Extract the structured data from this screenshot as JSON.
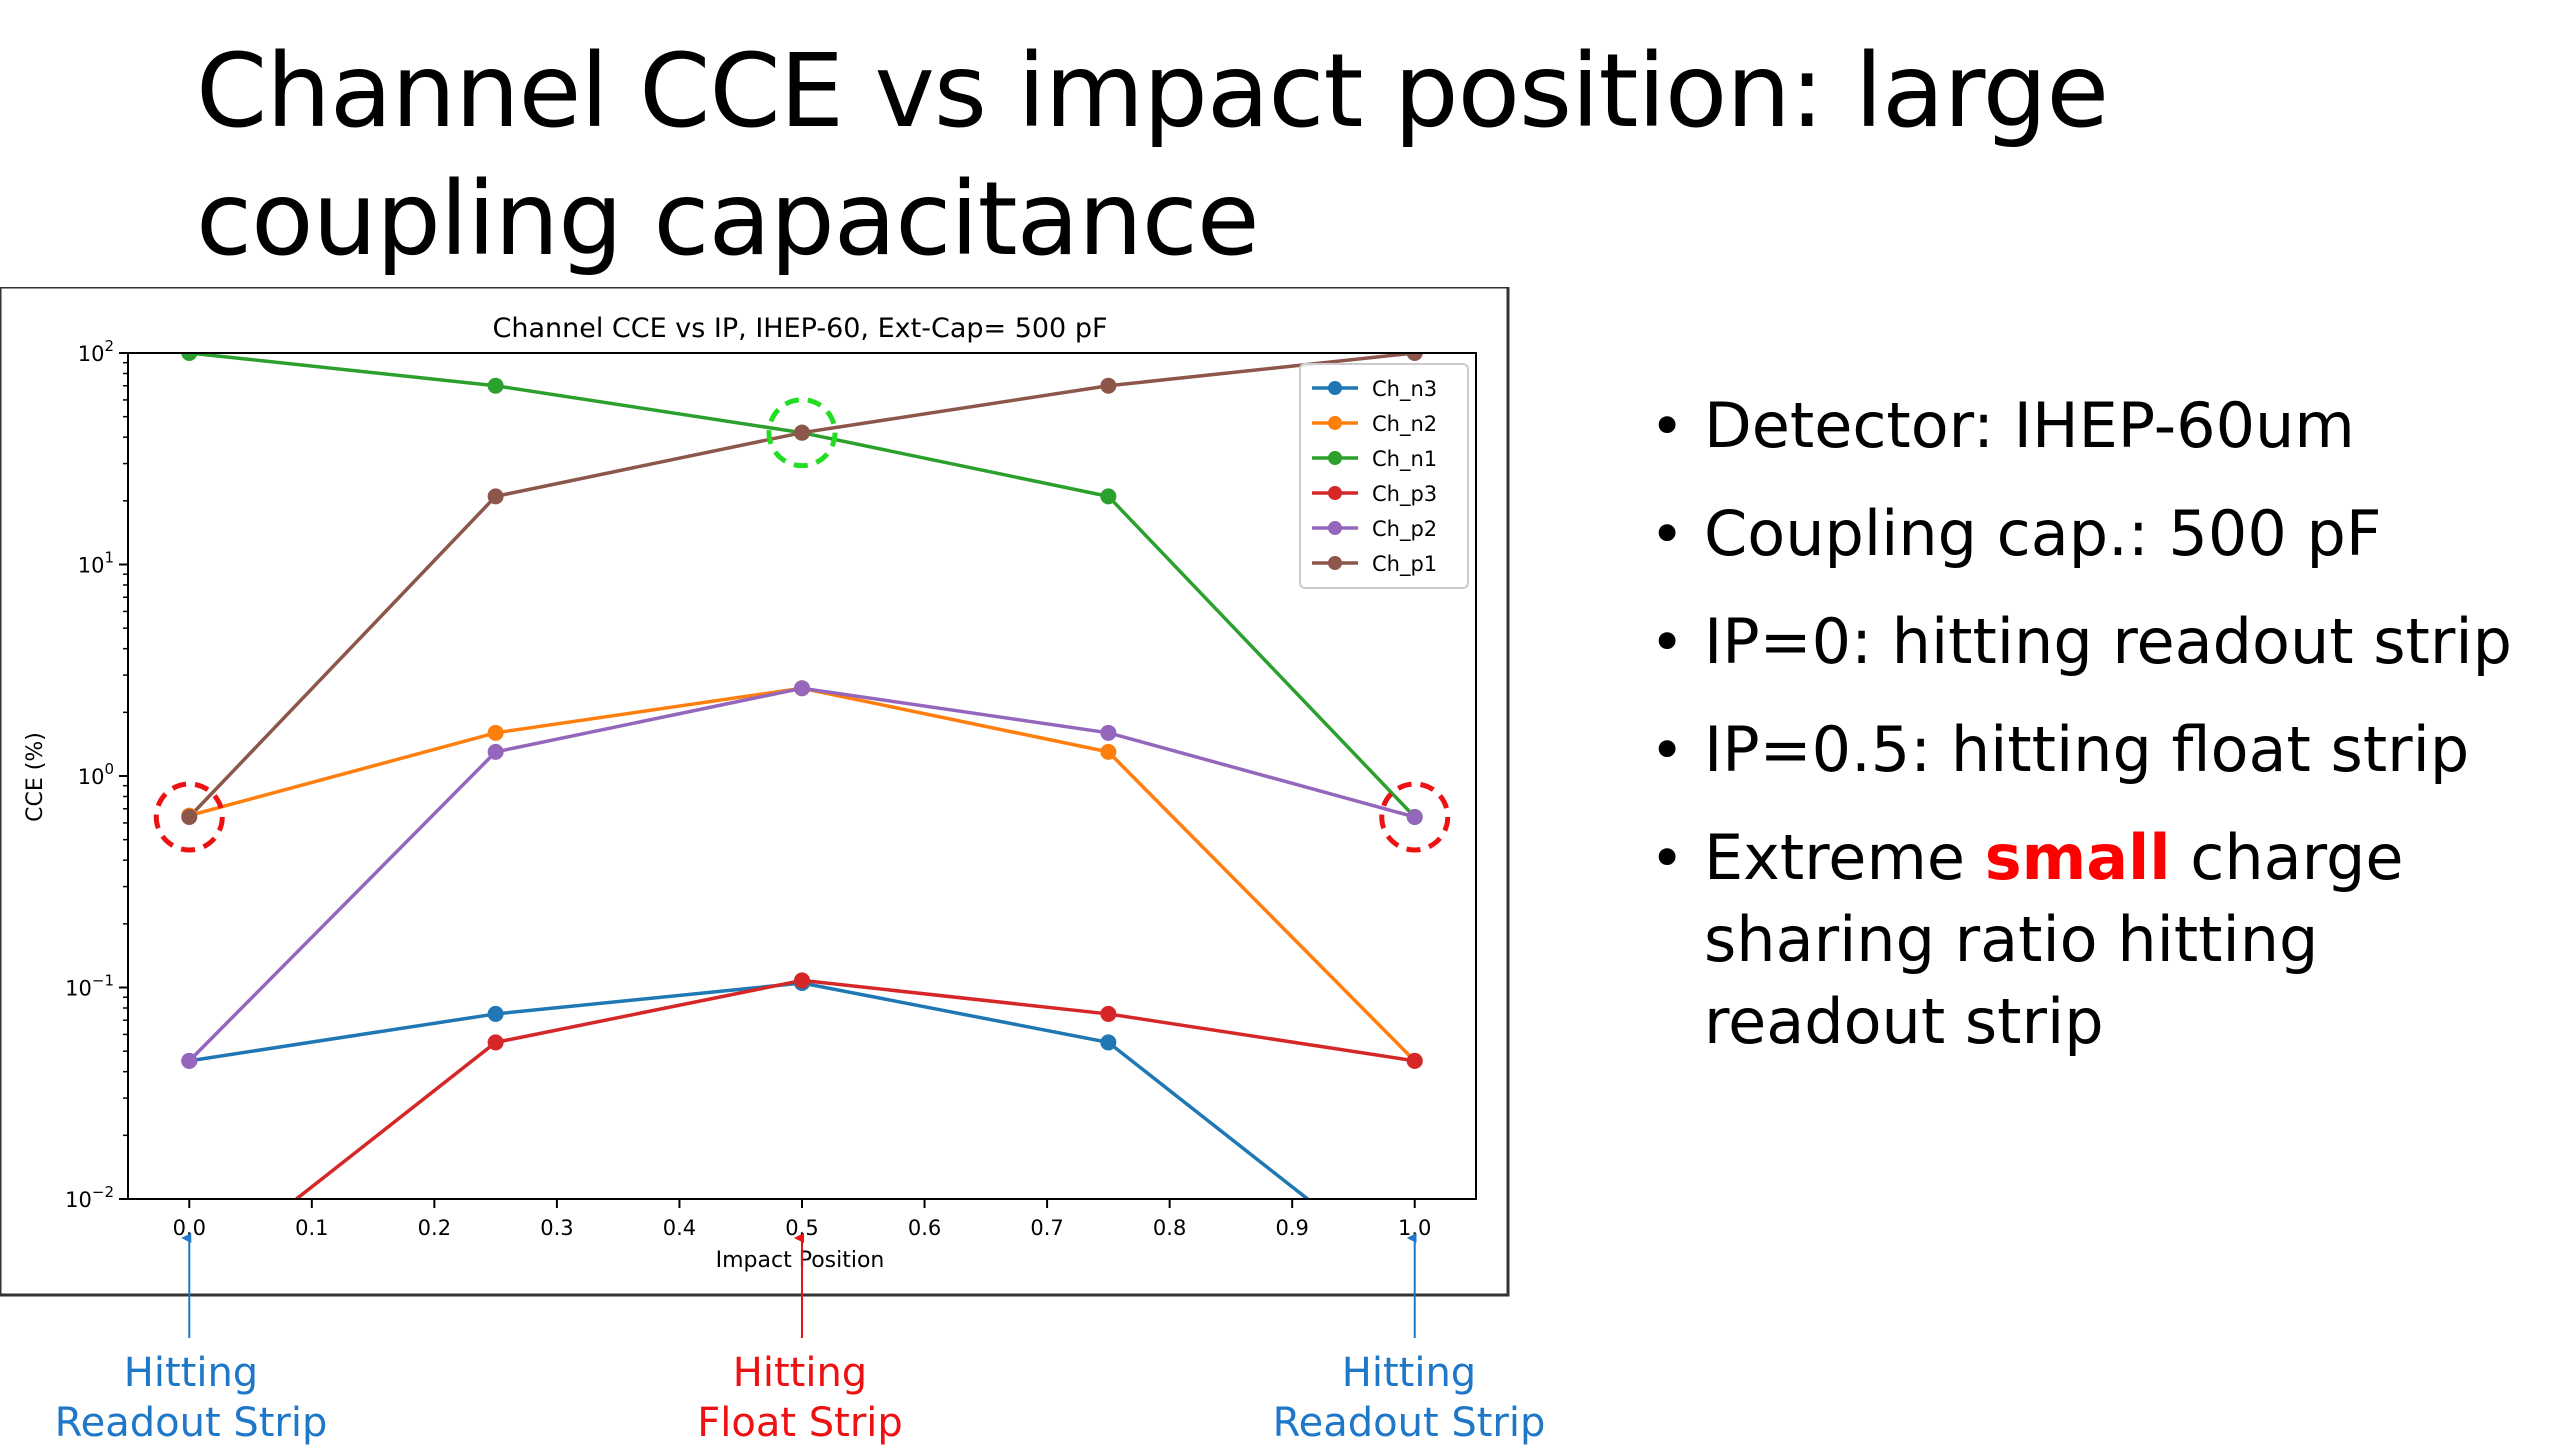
{
  "slide": {
    "title_lines": [
      "Channel CCE vs impact position: large",
      "coupling capacitance"
    ]
  },
  "bullets": [
    {
      "lines": [
        "Detector: IHEP-60um"
      ]
    },
    {
      "lines": [
        "Coupling cap.: 500 pF"
      ]
    },
    {
      "lines": [
        "IP=0: hitting readout strip"
      ]
    },
    {
      "lines": [
        "IP=0.5: hitting float strip"
      ]
    },
    {
      "before": "Extreme ",
      "emph": "small",
      "after": " charge",
      "lines": [
        "sharing ratio hitting",
        "readout strip"
      ]
    }
  ],
  "callouts": [
    {
      "lines": [
        "Hitting",
        "Readout Strip"
      ],
      "kind": "readout"
    },
    {
      "lines": [
        "Hitting",
        "Float Strip"
      ],
      "kind": "float"
    },
    {
      "lines": [
        "Hitting",
        "Readout Strip"
      ],
      "kind": "readout"
    }
  ],
  "colors": {
    "readout_callout": "#1f77c8",
    "float_callout": "#ee1111",
    "emphasis": "#ff0000",
    "marker_circle_readout": "#ee1111",
    "marker_circle_float": "#22dd22"
  },
  "chart_data": {
    "type": "line",
    "title": "Channel CCE vs IP, IHEP-60, Ext-Cap= 500 pF",
    "xlabel": "Impact Position",
    "ylabel": "CCE (%)",
    "xlim": [
      -0.05,
      1.05
    ],
    "ylim": [
      0.01,
      100
    ],
    "yscale": "log",
    "xticks": [
      "0.0",
      "0.1",
      "0.2",
      "0.3",
      "0.4",
      "0.5",
      "0.6",
      "0.7",
      "0.8",
      "0.9",
      "1.0"
    ],
    "yticks": [
      {
        "value": 0.01,
        "base": "10",
        "exp": "−2"
      },
      {
        "value": 0.1,
        "base": "10",
        "exp": "−1"
      },
      {
        "value": 1,
        "base": "10",
        "exp": "0"
      },
      {
        "value": 10,
        "base": "10",
        "exp": "1"
      },
      {
        "value": 100,
        "base": "10",
        "exp": "2"
      }
    ],
    "legend": "top-right",
    "grid": false,
    "x": [
      0,
      0.25,
      0.5,
      0.75,
      1.0
    ],
    "series": [
      {
        "name": "Ch_n3",
        "color": "#1f77b4",
        "values": [
          0.045,
          0.075,
          0.105,
          0.055,
          0.004
        ]
      },
      {
        "name": "Ch_n2",
        "color": "#ff7f0e",
        "values": [
          0.65,
          1.6,
          2.6,
          1.3,
          0.045
        ]
      },
      {
        "name": "Ch_n1",
        "color": "#2ca02c",
        "values": [
          100,
          70,
          42,
          21,
          0.64
        ]
      },
      {
        "name": "Ch_p3",
        "color": "#d62728",
        "values": [
          0.004,
          0.055,
          0.108,
          0.075,
          0.045
        ]
      },
      {
        "name": "Ch_p2",
        "color": "#9467bd",
        "values": [
          0.045,
          1.3,
          2.6,
          1.6,
          0.64
        ]
      },
      {
        "name": "Ch_p1",
        "color": "#8c564b",
        "values": [
          0.64,
          21,
          42,
          70,
          100
        ]
      }
    ],
    "highlight_circles": [
      {
        "x": 0.0,
        "y": 0.64,
        "color": "#ee1111"
      },
      {
        "x": 0.5,
        "y": 42,
        "color": "#22dd22"
      },
      {
        "x": 1.0,
        "y": 0.64,
        "color": "#ee1111"
      }
    ],
    "arrows": [
      {
        "x": 0.0,
        "color": "#1f77c8"
      },
      {
        "x": 0.5,
        "color": "#ee1111"
      },
      {
        "x": 1.0,
        "color": "#1f77c8"
      }
    ]
  }
}
